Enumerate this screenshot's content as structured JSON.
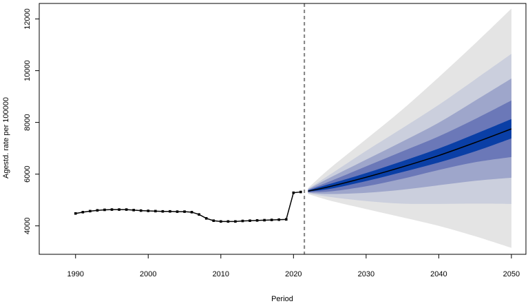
{
  "chart_data": {
    "type": "line",
    "title": "",
    "xlabel": "Period",
    "ylabel": "Agestd. rate per 100000",
    "xlim": [
      1985,
      2052
    ],
    "ylim": [
      2900,
      12600
    ],
    "x_ticks": [
      1990,
      2000,
      2010,
      2020,
      2030,
      2040,
      2050
    ],
    "y_ticks": [
      4000,
      6000,
      8000,
      10000,
      12000
    ],
    "forecast_start": 2021.5,
    "observed": {
      "x": [
        1990,
        1991,
        1992,
        1993,
        1994,
        1995,
        1996,
        1997,
        1998,
        1999,
        2000,
        2001,
        2002,
        2003,
        2004,
        2005,
        2006,
        2007,
        2008,
        2009,
        2010,
        2011,
        2012,
        2013,
        2014,
        2015,
        2016,
        2017,
        2018,
        2019,
        2020,
        2021
      ],
      "y": [
        4480,
        4530,
        4570,
        4600,
        4620,
        4630,
        4630,
        4630,
        4610,
        4590,
        4580,
        4570,
        4560,
        4560,
        4550,
        4550,
        4530,
        4440,
        4290,
        4200,
        4170,
        4170,
        4170,
        4190,
        4200,
        4210,
        4220,
        4230,
        4240,
        4250,
        5280,
        5310
      ]
    },
    "forecast": {
      "x": [
        2022,
        2025,
        2030,
        2035,
        2040,
        2045,
        2050
      ],
      "mean": [
        5340,
        5520,
        5880,
        6280,
        6720,
        7220,
        7750
      ]
    },
    "prediction_bands": [
      {
        "color": "#e4e4e4",
        "lower": [
          5230,
          4980,
          4650,
          4330,
          4000,
          3600,
          3150
        ],
        "upper": [
          5460,
          6220,
          7350,
          8500,
          9750,
          11050,
          12400
        ]
      },
      {
        "color": "#cbcfdd",
        "lower": [
          5260,
          5120,
          4960,
          4860,
          4850,
          4860,
          4850
        ],
        "upper": [
          5430,
          5980,
          6900,
          7780,
          8680,
          9660,
          10650
        ]
      },
      {
        "color": "#9ea6cb",
        "lower": [
          5280,
          5230,
          5280,
          5400,
          5570,
          5740,
          5860
        ],
        "upper": [
          5410,
          5860,
          6560,
          7260,
          7990,
          8840,
          9700
        ]
      },
      {
        "color": "#6b78b8",
        "lower": [
          5300,
          5330,
          5530,
          5820,
          6160,
          6460,
          6660
        ],
        "upper": [
          5390,
          5720,
          6300,
          6880,
          7460,
          8130,
          8850
        ]
      },
      {
        "color": "#0a3fa6",
        "lower": [
          5320,
          5430,
          5730,
          6080,
          6450,
          6880,
          7380
        ],
        "upper": [
          5370,
          5620,
          6040,
          6500,
          6990,
          7550,
          8130
        ]
      }
    ],
    "colors": {
      "line": "#000000",
      "divider": "#808080"
    },
    "grid": false,
    "legend": "none"
  }
}
